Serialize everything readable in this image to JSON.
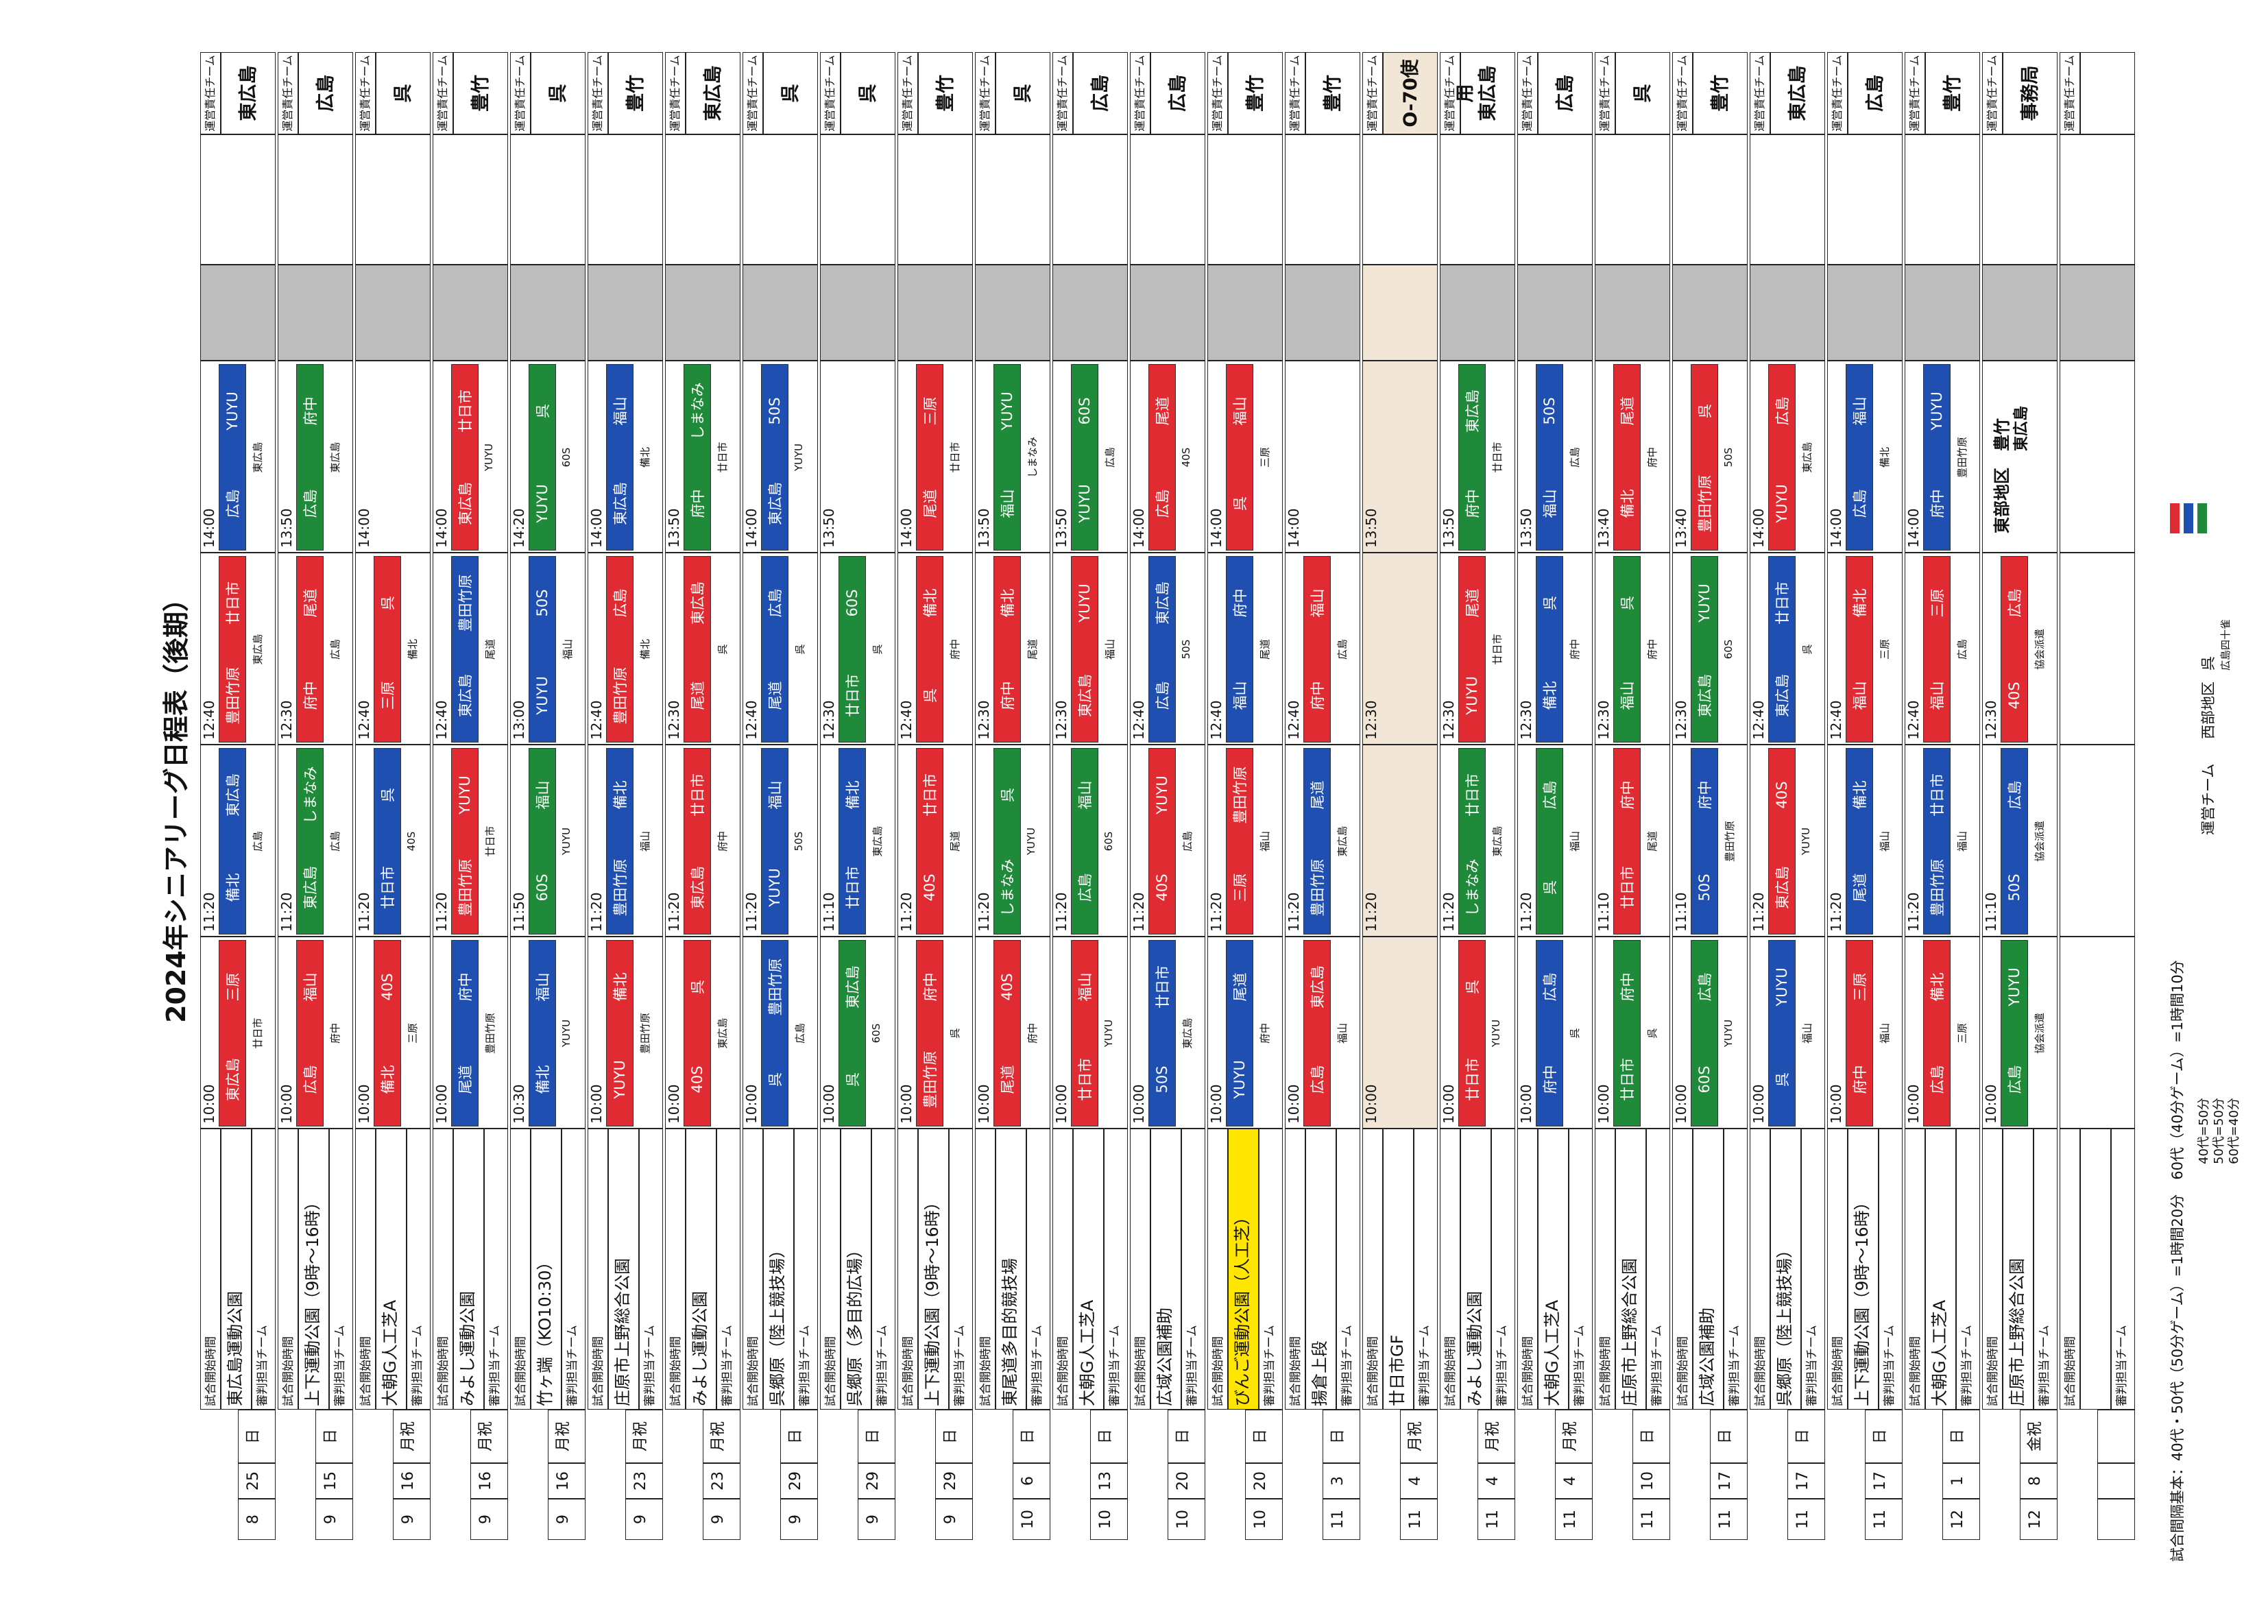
{
  "title": "2024年シニアリーグ日程表（後期）",
  "labels": {
    "start_time": "試合開始時間",
    "referee_team": "審判担当チーム",
    "responsible_team": "運営責任チーム"
  },
  "colors": {
    "50": "#e02b33",
    "40": "#1f4fb0",
    "60": "#1f8a3a"
  },
  "days": [
    {
      "m": "8",
      "d": "25",
      "w": "日",
      "venue": "東広島運動公園",
      "times": [
        "10:00",
        "11:20",
        "12:40",
        "14:00"
      ],
      "games": [
        {
          "a": "東広島",
          "b": "三原",
          "c": "50"
        },
        {
          "a": "備北",
          "b": "東広島",
          "c": "40"
        },
        {
          "a": "豊田竹原",
          "b": "廿日市",
          "c": "50"
        },
        {
          "a": "広島",
          "b": "YUYU",
          "c": "40"
        }
      ],
      "refs": [
        "廿日市",
        "広島",
        "東広島",
        "東広島"
      ],
      "resp": "東広島"
    },
    {
      "m": "9",
      "d": "15",
      "w": "日",
      "venue": "上下運動公園（9時～16時）",
      "times": [
        "10:00",
        "11:20",
        "12:30",
        "13:50"
      ],
      "games": [
        {
          "a": "広島",
          "b": "福山",
          "c": "50"
        },
        {
          "a": "東広島",
          "b": "しまなみ",
          "c": "60"
        },
        {
          "a": "府中",
          "b": "尾道",
          "c": "50"
        },
        {
          "a": "広島",
          "b": "府中",
          "c": "60"
        }
      ],
      "refs": [
        "府中",
        "広島",
        "広島",
        "東広島"
      ],
      "resp": "広島"
    },
    {
      "m": "9",
      "d": "16",
      "w": "月祝",
      "venue": "大朝G人工芝A",
      "times": [
        "10:00",
        "11:20",
        "12:40",
        "14:00"
      ],
      "games": [
        {
          "a": "備北",
          "b": "40S",
          "c": "50"
        },
        {
          "a": "廿日市",
          "b": "呉",
          "c": "40"
        },
        {
          "a": "三原",
          "b": "呉",
          "c": "50"
        },
        {
          "a": "",
          "b": "",
          "c": ""
        }
      ],
      "refs": [
        "三原",
        "40S",
        "備北",
        ""
      ],
      "resp": "呉"
    },
    {
      "m": "9",
      "d": "16",
      "w": "月祝",
      "venue": "みよし運動公園",
      "times": [
        "10:00",
        "11:20",
        "12:40",
        "14:00"
      ],
      "games": [
        {
          "a": "尾道",
          "b": "府中",
          "c": "40"
        },
        {
          "a": "豊田竹原",
          "b": "YUYU",
          "c": "50"
        },
        {
          "a": "東広島",
          "b": "豊田竹原",
          "c": "40"
        },
        {
          "a": "東広島",
          "b": "廿日市",
          "c": "50"
        }
      ],
      "refs": [
        "豊田竹原",
        "廿日市",
        "尾道",
        "YUYU"
      ],
      "resp": "豊竹"
    },
    {
      "m": "9",
      "d": "16",
      "w": "月祝",
      "venue": "竹ヶ端（KO10:30）",
      "times": [
        "10:30",
        "11:50",
        "13:00",
        "14:20"
      ],
      "games": [
        {
          "a": "備北",
          "b": "福山",
          "c": "40"
        },
        {
          "a": "60S",
          "b": "福山",
          "c": "60"
        },
        {
          "a": "YUYU",
          "b": "50S",
          "c": "40"
        },
        {
          "a": "YUYU",
          "b": "呉",
          "c": "60"
        }
      ],
      "refs": [
        "YUYU",
        "YUYU",
        "福山",
        "60S"
      ],
      "resp": "呉"
    },
    {
      "m": "9",
      "d": "23",
      "w": "月祝",
      "venue": "庄原市上野総合公園",
      "times": [
        "10:00",
        "11:20",
        "12:40",
        "14:00"
      ],
      "games": [
        {
          "a": "YUYU",
          "b": "備北",
          "c": "50"
        },
        {
          "a": "豊田竹原",
          "b": "備北",
          "c": "40"
        },
        {
          "a": "豊田竹原",
          "b": "広島",
          "c": "50"
        },
        {
          "a": "東広島",
          "b": "福山",
          "c": "40"
        }
      ],
      "refs": [
        "豊田竹原",
        "福山",
        "備北",
        "備北"
      ],
      "resp": "豊竹"
    },
    {
      "m": "9",
      "d": "23",
      "w": "月祝",
      "venue": "みよし運動公園",
      "times": [
        "10:00",
        "11:20",
        "12:30",
        "13:50"
      ],
      "games": [
        {
          "a": "40S",
          "b": "呉",
          "c": "50"
        },
        {
          "a": "東広島",
          "b": "廿日市",
          "c": "50"
        },
        {
          "a": "尾道",
          "b": "東広島",
          "c": "50"
        },
        {
          "a": "府中",
          "b": "しまなみ",
          "c": "60"
        }
      ],
      "refs": [
        "東広島",
        "府中",
        "呉",
        "廿日市"
      ],
      "resp": "東広島"
    },
    {
      "m": "9",
      "d": "29",
      "w": "日",
      "venue": "呉郷原（陸上競技場）",
      "times": [
        "10:00",
        "11:20",
        "12:40",
        "14:00"
      ],
      "games": [
        {
          "a": "呉",
          "b": "豊田竹原",
          "c": "40"
        },
        {
          "a": "YUYU",
          "b": "福山",
          "c": "40"
        },
        {
          "a": "尾道",
          "b": "広島",
          "c": "40"
        },
        {
          "a": "東広島",
          "b": "50S",
          "c": "40"
        }
      ],
      "refs": [
        "広島",
        "50S",
        "呉",
        "YUYU"
      ],
      "resp": "呉"
    },
    {
      "m": "9",
      "d": "29",
      "w": "日",
      "venue": "呉郷原（多目的広場）",
      "times": [
        "10:00",
        "11:10",
        "12:30",
        "13:50"
      ],
      "games": [
        {
          "a": "呉",
          "b": "東広島",
          "c": "60"
        },
        {
          "a": "廿日市",
          "b": "備北",
          "c": "40"
        },
        {
          "a": "廿日市",
          "b": "60S",
          "c": "60"
        },
        {
          "a": "",
          "b": "",
          "c": ""
        }
      ],
      "refs": [
        "60S",
        "東広島",
        "呉",
        ""
      ],
      "resp": "呉"
    },
    {
      "m": "9",
      "d": "29",
      "w": "日",
      "venue": "上下運動公園（9時～16時）",
      "times": [
        "10:00",
        "11:20",
        "12:40",
        "14:00"
      ],
      "games": [
        {
          "a": "豊田竹原",
          "b": "府中",
          "c": "50"
        },
        {
          "a": "40S",
          "b": "廿日市",
          "c": "50"
        },
        {
          "a": "呉",
          "b": "備北",
          "c": "50"
        },
        {
          "a": "尾道",
          "b": "三原",
          "c": "50"
        }
      ],
      "refs": [
        "呉",
        "尾道",
        "府中",
        "廿日市"
      ],
      "resp": "豊竹"
    },
    {
      "m": "10",
      "d": "6",
      "w": "日",
      "venue": "東尾道多目的競技場",
      "times": [
        "10:00",
        "11:20",
        "12:30",
        "13:50"
      ],
      "games": [
        {
          "a": "尾道",
          "b": "40S",
          "c": "50"
        },
        {
          "a": "しまなみ",
          "b": "呉",
          "c": "60"
        },
        {
          "a": "府中",
          "b": "備北",
          "c": "50"
        },
        {
          "a": "福山",
          "b": "YUYU",
          "c": "60"
        }
      ],
      "refs": [
        "府中",
        "YUYU",
        "尾道",
        "しまなみ"
      ],
      "resp": "呉"
    },
    {
      "m": "10",
      "d": "13",
      "w": "日",
      "venue": "大朝G人工芝A",
      "times": [
        "10:00",
        "11:20",
        "12:30",
        "13:50"
      ],
      "games": [
        {
          "a": "廿日市",
          "b": "福山",
          "c": "50"
        },
        {
          "a": "広島",
          "b": "福山",
          "c": "60"
        },
        {
          "a": "東広島",
          "b": "YUYU",
          "c": "50"
        },
        {
          "a": "YUYU",
          "b": "60S",
          "c": "60"
        }
      ],
      "refs": [
        "YUYU",
        "60S",
        "福山",
        "広島"
      ],
      "resp": "広島"
    },
    {
      "m": "10",
      "d": "20",
      "w": "日",
      "venue": "広域公園補助",
      "times": [
        "10:00",
        "11:20",
        "12:40",
        "14:00"
      ],
      "games": [
        {
          "a": "50S",
          "b": "廿日市",
          "c": "40"
        },
        {
          "a": "40S",
          "b": "YUYU",
          "c": "50"
        },
        {
          "a": "広島",
          "b": "東広島",
          "c": "40"
        },
        {
          "a": "広島",
          "b": "尾道",
          "c": "50"
        }
      ],
      "refs": [
        "東広島",
        "広島",
        "50S",
        "40S"
      ],
      "resp": "広島"
    },
    {
      "m": "10",
      "d": "20",
      "w": "日",
      "venue": "びんご運動公園（人工芝）",
      "highlight": true,
      "times": [
        "10:00",
        "11:20",
        "12:40",
        "14:00"
      ],
      "games": [
        {
          "a": "YUYU",
          "b": "尾道",
          "c": "40"
        },
        {
          "a": "三原",
          "b": "豊田竹原",
          "c": "50"
        },
        {
          "a": "福山",
          "b": "府中",
          "c": "40"
        },
        {
          "a": "呉",
          "b": "福山",
          "c": "50"
        }
      ],
      "refs": [
        "府中",
        "福山",
        "尾道",
        "三原"
      ],
      "resp": "豊竹"
    },
    {
      "m": "11",
      "d": "3",
      "w": "日",
      "venue": "揚倉上段",
      "times": [
        "10:00",
        "11:20",
        "12:40",
        "14:00"
      ],
      "games": [
        {
          "a": "広島",
          "b": "東広島",
          "c": "50"
        },
        {
          "a": "豊田竹原",
          "b": "尾道",
          "c": "40"
        },
        {
          "a": "府中",
          "b": "福山",
          "c": "50"
        },
        {
          "a": "",
          "b": "",
          "c": ""
        }
      ],
      "refs": [
        "福山",
        "東広島",
        "広島",
        ""
      ],
      "resp": "豊竹"
    },
    {
      "m": "11",
      "d": "4",
      "w": "月祝",
      "venue": "廿日市GF",
      "cancel": true,
      "times": [
        "10:00",
        "11:20",
        "12:30",
        "13:50"
      ],
      "games": [
        {
          "a": "",
          "b": "",
          "c": ""
        },
        {
          "a": "",
          "b": "",
          "c": ""
        },
        {
          "a": "",
          "b": "",
          "c": ""
        },
        {
          "a": "",
          "b": "",
          "c": ""
        }
      ],
      "refs": [
        "",
        "",
        "",
        ""
      ],
      "resp": "O-70使用"
    },
    {
      "m": "11",
      "d": "4",
      "w": "月祝",
      "venue": "みよし運動公園",
      "times": [
        "10:00",
        "11:20",
        "12:30",
        "13:50"
      ],
      "games": [
        {
          "a": "廿日市",
          "b": "呉",
          "c": "50"
        },
        {
          "a": "しまなみ",
          "b": "廿日市",
          "c": "60"
        },
        {
          "a": "YUYU",
          "b": "尾道",
          "c": "50"
        },
        {
          "a": "府中",
          "b": "東広島",
          "c": "60"
        }
      ],
      "refs": [
        "YUYU",
        "東広島",
        "廿日市",
        "廿日市"
      ],
      "resp": "東広島"
    },
    {
      "m": "11",
      "d": "4",
      "w": "月祝",
      "venue": "大朝G人工芝A",
      "times": [
        "10:00",
        "11:20",
        "12:30",
        "13:50"
      ],
      "games": [
        {
          "a": "府中",
          "b": "広島",
          "c": "40"
        },
        {
          "a": "呉",
          "b": "広島",
          "c": "60"
        },
        {
          "a": "備北",
          "b": "呉",
          "c": "40"
        },
        {
          "a": "福山",
          "b": "50S",
          "c": "40"
        }
      ],
      "refs": [
        "呉",
        "福山",
        "府中",
        "広島"
      ],
      "resp": "広島"
    },
    {
      "m": "11",
      "d": "10",
      "w": "日",
      "venue": "庄原市上野総合公園",
      "times": [
        "10:00",
        "11:10",
        "12:30",
        "13:40"
      ],
      "games": [
        {
          "a": "廿日市",
          "b": "府中",
          "c": "60"
        },
        {
          "a": "廿日市",
          "b": "府中",
          "c": "50"
        },
        {
          "a": "福山",
          "b": "呉",
          "c": "60"
        },
        {
          "a": "備北",
          "b": "尾道",
          "c": "50"
        }
      ],
      "refs": [
        "呉",
        "尾道",
        "府中",
        "府中"
      ],
      "resp": "呉"
    },
    {
      "m": "11",
      "d": "17",
      "w": "日",
      "venue": "広域公園補助",
      "times": [
        "10:00",
        "11:10",
        "12:30",
        "13:40"
      ],
      "games": [
        {
          "a": "60S",
          "b": "広島",
          "c": "60"
        },
        {
          "a": "50S",
          "b": "府中",
          "c": "40"
        },
        {
          "a": "東広島",
          "b": "YUYU",
          "c": "60"
        },
        {
          "a": "豊田竹原",
          "b": "呉",
          "c": "50"
        }
      ],
      "refs": [
        "YUYU",
        "豊田竹原",
        "60S",
        "50S"
      ],
      "resp": "豊竹"
    },
    {
      "m": "11",
      "d": "17",
      "w": "日",
      "venue": "呉郷原（陸上競技場）",
      "times": [
        "10:00",
        "11:20",
        "12:40",
        "14:00"
      ],
      "games": [
        {
          "a": "呉",
          "b": "YUYU",
          "c": "40"
        },
        {
          "a": "東広島",
          "b": "40S",
          "c": "50"
        },
        {
          "a": "東広島",
          "b": "廿日市",
          "c": "40"
        },
        {
          "a": "YUYU",
          "b": "広島",
          "c": "50"
        }
      ],
      "refs": [
        "福山",
        "YUYU",
        "呉",
        "東広島"
      ],
      "resp": "東広島"
    },
    {
      "m": "11",
      "d": "17",
      "w": "日",
      "venue": "上下運動公園（9時～16時）",
      "times": [
        "10:00",
        "11:20",
        "12:40",
        "14:00"
      ],
      "games": [
        {
          "a": "府中",
          "b": "三原",
          "c": "50"
        },
        {
          "a": "尾道",
          "b": "備北",
          "c": "40"
        },
        {
          "a": "福山",
          "b": "備北",
          "c": "50"
        },
        {
          "a": "広島",
          "b": "福山",
          "c": "40"
        }
      ],
      "refs": [
        "福山",
        "福山",
        "三原",
        "備北"
      ],
      "resp": "広島"
    },
    {
      "m": "12",
      "d": "1",
      "w": "日",
      "venue": "大朝G人工芝A",
      "times": [
        "10:00",
        "11:20",
        "12:40",
        "14:00"
      ],
      "games": [
        {
          "a": "広島",
          "b": "備北",
          "c": "50"
        },
        {
          "a": "豊田竹原",
          "b": "廿日市",
          "c": "40"
        },
        {
          "a": "福山",
          "b": "三原",
          "c": "50"
        },
        {
          "a": "府中",
          "b": "YUYU",
          "c": "40"
        }
      ],
      "refs": [
        "三原",
        "福山",
        "広島",
        "豊田竹原"
      ],
      "resp": "豊竹"
    },
    {
      "m": "12",
      "d": "8",
      "w": "金祝",
      "venue": "庄原市上野総合公園",
      "times": [
        "10:00",
        "11:10",
        "12:30",
        ""
      ],
      "games": [
        {
          "a": "広島",
          "b": "YUYU",
          "c": "60"
        },
        {
          "a": "50S",
          "b": "広島",
          "c": "40"
        },
        {
          "a": "40S",
          "b": "広島",
          "c": "50"
        },
        {
          "a": "",
          "b": "",
          "c": ""
        }
      ],
      "refs": [
        "協会派遣",
        "協会派遣",
        "協会派遣",
        ""
      ],
      "resp": "事務局"
    },
    {
      "m": "",
      "d": "",
      "w": "",
      "venue": "",
      "times": [
        "",
        "",
        "",
        ""
      ],
      "games": [
        {
          "a": "",
          "b": "",
          "c": ""
        },
        {
          "a": "",
          "b": "",
          "c": ""
        },
        {
          "a": "",
          "b": "",
          "c": ""
        },
        {
          "a": "",
          "b": "",
          "c": ""
        }
      ],
      "refs": [
        "",
        "",
        "",
        ""
      ],
      "resp": ""
    }
  ],
  "footer": {
    "game_time": "試合間隔基本：40代・50代（50分ゲーム）=1時間20分　60代（40分ゲーム）=1時間10分",
    "legend_50": "40代=50分",
    "legend_40": "50代=50分",
    "legend_60": "60代=40分",
    "host_team": "運営チーム",
    "west": "西部地区",
    "west_teams": "呉",
    "west_sub": "広島四十雀",
    "east": "東部地区",
    "east_teams": "豊竹",
    "east_sub": "東広島"
  }
}
